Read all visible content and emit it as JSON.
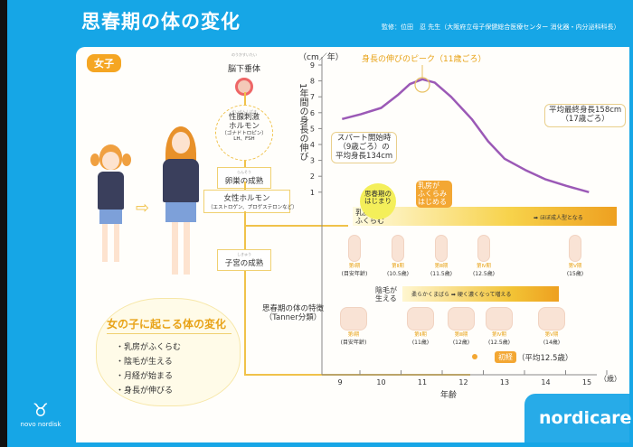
{
  "header": {
    "title": "思春期の体の変化",
    "supervisor": "監修：位田　忍 先生（大阪府立母子保健総合医療センター 消化器・内分泌科科長）"
  },
  "tag": "女子",
  "flow": {
    "pituitary": {
      "ruby": "のうかすいたい",
      "label": "脳下垂体"
    },
    "gonadotropin": {
      "ruby": "せいせんしげき",
      "label1": "性腺刺激",
      "label2": "ホルモン",
      "sub": "（ゴナドトロピン）",
      "sub2": "LH、FSH"
    },
    "ovary": {
      "ruby": "らんそう",
      "label": "卵巣の成熟"
    },
    "hormone": {
      "label": "女性ホルモン",
      "sub": "（エストロゲン、プロゲステロンなど）"
    },
    "uterus": {
      "ruby": "しきゅう",
      "label": "子宮の成熟"
    }
  },
  "cloud": {
    "title": "女の子に起こる体の変化",
    "items": [
      "・乳房がふくらむ",
      "・陰毛が生える",
      "・月経が始まる",
      "・身長が伸びる"
    ]
  },
  "brand": {
    "novo": "novo nordisk",
    "nordic": "nordicare"
  },
  "chart_data": {
    "type": "line",
    "title": "身長の伸びのピーク（11歳ごろ）",
    "ylabel": "1年間の身長の伸び",
    "yunit": "（cm／年）",
    "xlabel": "年齢",
    "xunit": "（歳）",
    "xticks": [
      9,
      10,
      11,
      12,
      13,
      14,
      15
    ],
    "yticks": [
      1,
      2,
      3,
      4,
      5,
      6,
      7,
      8,
      9
    ],
    "xlim": [
      8.55,
      15.5
    ],
    "ylim": [
      0,
      9.4
    ],
    "x": [
      9.05,
      9.5,
      10,
      10.4,
      10.7,
      11,
      11.3,
      11.7,
      12.2,
      12.6,
      13,
      13.5,
      14,
      14.5,
      15.05
    ],
    "y": [
      5.6,
      5.9,
      6.3,
      7.1,
      7.8,
      8.1,
      7.9,
      7.0,
      5.6,
      4.2,
      3.1,
      2.4,
      1.8,
      1.4,
      1.0
    ],
    "series_color": "#9b59b6",
    "annotations": {
      "start": [
        "スパート開始時",
        "（9歳ごろ）の",
        "平均身長134cm"
      ],
      "final": [
        "平均最終身長158cm",
        "（17歳ごろ）"
      ]
    }
  },
  "tanner": {
    "title": "思春期の体の特徴",
    "sub": "（Tanner分類）",
    "onset": [
      "思春期の",
      "はじまり"
    ],
    "breast_begin": [
      "乳房が",
      "ふくらみ",
      "はじめる"
    ],
    "breast_label": [
      "乳房が",
      "ふくらむ"
    ],
    "breast_end": "ほぼ成人型となる",
    "breast_stages": [
      {
        "s": "第Ⅰ期",
        "a": "(目安年齢)"
      },
      {
        "s": "第Ⅱ期",
        "a": "(10.5歳)"
      },
      {
        "s": "第Ⅲ期",
        "a": "(11.5歳)"
      },
      {
        "s": "第Ⅳ期",
        "a": "(12.5歳)"
      },
      {
        "s": "第Ⅴ期",
        "a": "(15歳)"
      }
    ],
    "hair_label": [
      "陰毛が",
      "生える"
    ],
    "hair_bar": "柔らかくまばら ➡ 硬く濃くなって増える",
    "hair_stages": [
      {
        "s": "第Ⅰ期",
        "a": "(目安年齢)"
      },
      {
        "s": "第Ⅱ期",
        "a": "(11歳)"
      },
      {
        "s": "第Ⅲ期",
        "a": "(12歳)"
      },
      {
        "s": "第Ⅳ期",
        "a": "(12.5歳)"
      },
      {
        "s": "第Ⅴ期",
        "a": "(14歳)"
      }
    ],
    "menarche": "初経",
    "menarche_avg": "（平均12.5歳）"
  }
}
